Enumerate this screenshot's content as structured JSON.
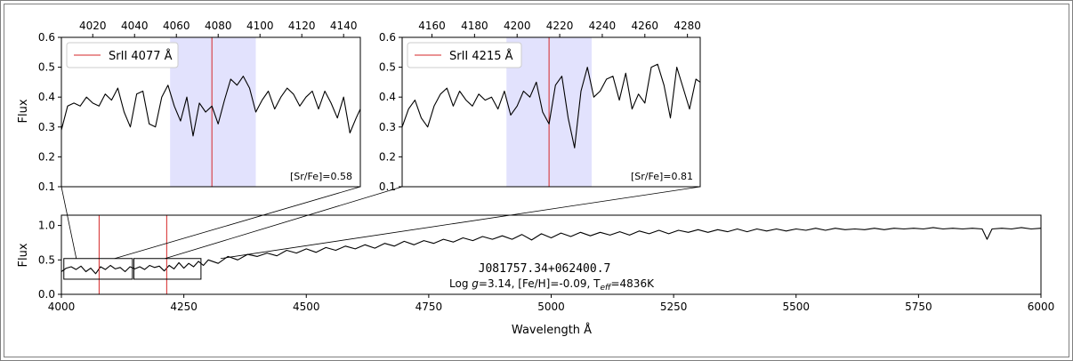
{
  "chart_data": [
    {
      "type": "line",
      "id": "main",
      "object_name": "J081757.34+062400.7",
      "params_prefix": "Log ",
      "params_g_symbol": "g",
      "params_g_value": "=3.14, [Fe/H]=-0.09, T",
      "params_teff_sub": "eff",
      "params_teff_value": "=4836K",
      "xlabel": "Wavelength Å",
      "ylabel": "Flux",
      "xlim": [
        4000,
        6000
      ],
      "ylim": [
        0,
        1.15
      ],
      "xticks": [
        4000,
        4250,
        4500,
        4750,
        5000,
        5250,
        5500,
        5750,
        6000
      ],
      "yticks": [
        "0.0",
        "0.5",
        "1.0"
      ],
      "ytick_values": [
        0,
        0.5,
        1.0
      ],
      "line_color": "#000000",
      "marker_lines_x": [
        4077,
        4215
      ],
      "marker_color": "#d62728",
      "zoom_boxes": [
        {
          "x": [
            4005,
            4145
          ],
          "y": [
            0.22,
            0.52
          ]
        },
        {
          "x": [
            4148,
            4285
          ],
          "y": [
            0.22,
            0.52
          ]
        }
      ],
      "series": [
        {
          "x": [
            4000,
            4010,
            4020,
            4030,
            4040,
            4050,
            4060,
            4070,
            4080,
            4090,
            4100,
            4110,
            4120,
            4130,
            4140,
            4150,
            4160,
            4170,
            4180,
            4190,
            4200,
            4210,
            4220,
            4230,
            4240,
            4250,
            4260,
            4270,
            4280,
            4290,
            4300,
            4320,
            4340,
            4360,
            4380,
            4400,
            4420,
            4440,
            4460,
            4480,
            4500,
            4520,
            4540,
            4560,
            4580,
            4600,
            4620,
            4640,
            4660,
            4680,
            4700,
            4720,
            4740,
            4760,
            4780,
            4800,
            4820,
            4840,
            4860,
            4880,
            4900,
            4920,
            4940,
            4960,
            4980,
            5000,
            5020,
            5040,
            5060,
            5080,
            5100,
            5120,
            5140,
            5160,
            5180,
            5200,
            5220,
            5240,
            5260,
            5280,
            5300,
            5320,
            5340,
            5360,
            5380,
            5400,
            5420,
            5440,
            5460,
            5480,
            5500,
            5520,
            5540,
            5560,
            5580,
            5600,
            5620,
            5640,
            5660,
            5680,
            5700,
            5720,
            5740,
            5760,
            5780,
            5800,
            5820,
            5840,
            5860,
            5880,
            5890,
            5900,
            5920,
            5940,
            5960,
            5980,
            6000
          ],
          "y": [
            0.33,
            0.38,
            0.4,
            0.36,
            0.41,
            0.33,
            0.38,
            0.3,
            0.4,
            0.36,
            0.42,
            0.37,
            0.39,
            0.33,
            0.4,
            0.37,
            0.4,
            0.36,
            0.42,
            0.39,
            0.41,
            0.34,
            0.42,
            0.37,
            0.46,
            0.38,
            0.45,
            0.4,
            0.48,
            0.42,
            0.5,
            0.45,
            0.55,
            0.5,
            0.58,
            0.55,
            0.6,
            0.56,
            0.64,
            0.6,
            0.66,
            0.61,
            0.68,
            0.64,
            0.7,
            0.66,
            0.72,
            0.67,
            0.74,
            0.7,
            0.77,
            0.72,
            0.78,
            0.74,
            0.8,
            0.76,
            0.82,
            0.78,
            0.84,
            0.8,
            0.85,
            0.8,
            0.87,
            0.79,
            0.88,
            0.82,
            0.89,
            0.84,
            0.9,
            0.85,
            0.9,
            0.86,
            0.91,
            0.86,
            0.92,
            0.88,
            0.93,
            0.88,
            0.93,
            0.9,
            0.94,
            0.9,
            0.94,
            0.91,
            0.95,
            0.91,
            0.95,
            0.92,
            0.95,
            0.92,
            0.95,
            0.93,
            0.96,
            0.93,
            0.96,
            0.94,
            0.95,
            0.94,
            0.96,
            0.94,
            0.96,
            0.95,
            0.96,
            0.95,
            0.97,
            0.95,
            0.96,
            0.95,
            0.96,
            0.95,
            0.8,
            0.95,
            0.96,
            0.95,
            0.97,
            0.95,
            0.96
          ]
        }
      ]
    },
    {
      "type": "line",
      "id": "inset1",
      "legend_label": "SrII 4077 Å",
      "annotation": "[Sr/Fe]=0.58",
      "ylabel": "Flux",
      "xlim": [
        4005,
        4148
      ],
      "ylim": [
        0.1,
        0.6
      ],
      "xticks": [
        4020,
        4040,
        4060,
        4080,
        4100,
        4120,
        4140
      ],
      "yticks": [
        "0.1",
        "0.2",
        "0.3",
        "0.4",
        "0.5",
        "0.6"
      ],
      "ytick_values": [
        0.1,
        0.2,
        0.3,
        0.4,
        0.5,
        0.6
      ],
      "marker_x": 4077,
      "marker_color": "#d62728",
      "band_x": [
        4057,
        4098
      ],
      "band_color": "#e2e2fd",
      "series": [
        {
          "x": [
            4005,
            4008,
            4011,
            4014,
            4017,
            4020,
            4023,
            4026,
            4029,
            4032,
            4035,
            4038,
            4041,
            4044,
            4047,
            4050,
            4053,
            4056,
            4059,
            4062,
            4065,
            4068,
            4071,
            4074,
            4077,
            4080,
            4083,
            4086,
            4089,
            4092,
            4095,
            4098,
            4101,
            4104,
            4107,
            4110,
            4113,
            4116,
            4119,
            4122,
            4125,
            4128,
            4131,
            4134,
            4137,
            4140,
            4143,
            4146,
            4148
          ],
          "y": [
            0.29,
            0.37,
            0.38,
            0.37,
            0.4,
            0.38,
            0.37,
            0.41,
            0.39,
            0.43,
            0.35,
            0.3,
            0.41,
            0.42,
            0.31,
            0.3,
            0.4,
            0.44,
            0.37,
            0.32,
            0.4,
            0.27,
            0.38,
            0.35,
            0.37,
            0.31,
            0.39,
            0.46,
            0.44,
            0.47,
            0.43,
            0.35,
            0.39,
            0.42,
            0.36,
            0.4,
            0.43,
            0.41,
            0.37,
            0.4,
            0.42,
            0.36,
            0.42,
            0.38,
            0.33,
            0.4,
            0.28,
            0.33,
            0.36
          ]
        }
      ]
    },
    {
      "type": "line",
      "id": "inset2",
      "legend_label": "SrII 4215 Å",
      "annotation": "[Sr/Fe]=0.81",
      "xlim": [
        4146,
        4286
      ],
      "ylim": [
        0.1,
        0.6
      ],
      "xticks": [
        4160,
        4180,
        4200,
        4220,
        4240,
        4260,
        4280
      ],
      "yticks": [
        "0.1",
        "0.2",
        "0.3",
        "0.4",
        "0.5",
        "0.6"
      ],
      "ytick_values": [
        0.1,
        0.2,
        0.3,
        0.4,
        0.5,
        0.6
      ],
      "marker_x": 4215,
      "marker_color": "#d62728",
      "band_x": [
        4195,
        4235
      ],
      "band_color": "#e2e2fd",
      "series": [
        {
          "x": [
            4146,
            4149,
            4152,
            4155,
            4158,
            4161,
            4164,
            4167,
            4170,
            4173,
            4176,
            4179,
            4182,
            4185,
            4188,
            4191,
            4194,
            4197,
            4200,
            4203,
            4206,
            4209,
            4212,
            4215,
            4218,
            4221,
            4224,
            4227,
            4230,
            4233,
            4236,
            4239,
            4242,
            4245,
            4248,
            4251,
            4254,
            4257,
            4260,
            4263,
            4266,
            4269,
            4272,
            4275,
            4278,
            4281,
            4284,
            4286
          ],
          "y": [
            0.3,
            0.36,
            0.39,
            0.33,
            0.3,
            0.37,
            0.41,
            0.43,
            0.37,
            0.42,
            0.39,
            0.37,
            0.41,
            0.39,
            0.4,
            0.36,
            0.42,
            0.34,
            0.37,
            0.42,
            0.4,
            0.45,
            0.35,
            0.31,
            0.44,
            0.47,
            0.33,
            0.23,
            0.42,
            0.5,
            0.4,
            0.42,
            0.46,
            0.47,
            0.39,
            0.48,
            0.36,
            0.41,
            0.38,
            0.5,
            0.51,
            0.44,
            0.33,
            0.5,
            0.43,
            0.36,
            0.46,
            0.45
          ]
        }
      ]
    }
  ]
}
